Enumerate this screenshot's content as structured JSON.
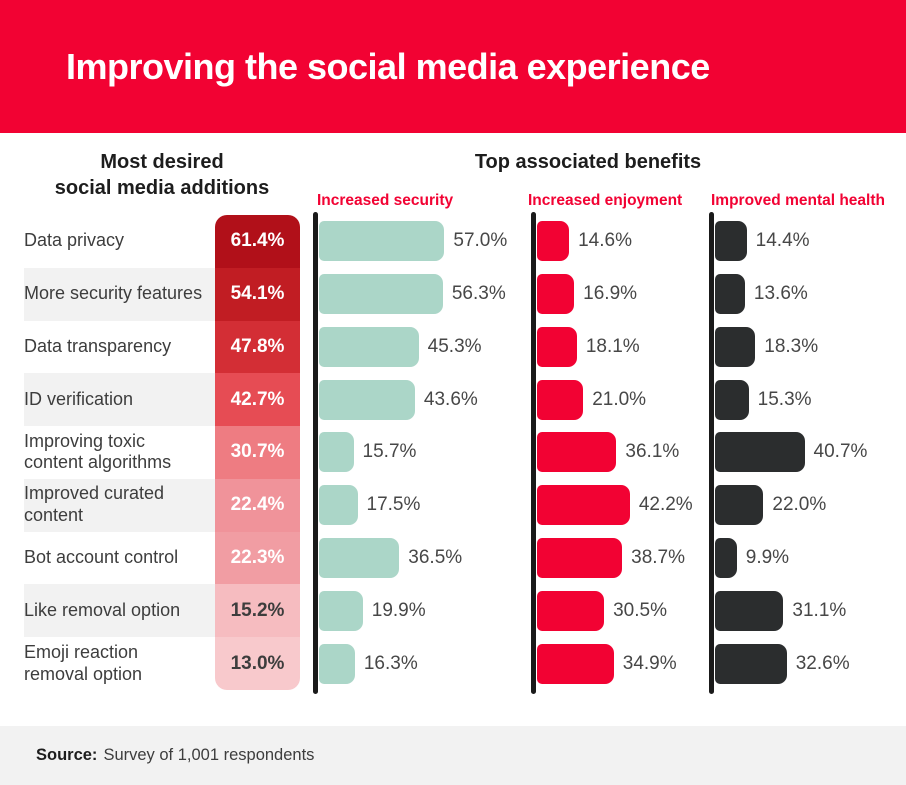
{
  "banner": {
    "title": "Improving the social media experience"
  },
  "headers": {
    "left_line1": "Most desired",
    "left_line2": "social media additions",
    "benefits": "Top associated benefits"
  },
  "footer": {
    "source_label": "Source:",
    "source_text": "Survey of 1,001 respondents"
  },
  "colors": {
    "banner_red": "#f20233",
    "bar_security": "#abd6c8",
    "bar_enjoyment": "#f20233",
    "bar_mental": "#2b2d2e",
    "axis": "#1a1a1a",
    "row_stripe": "#f2f2f2",
    "footer_bg": "#f2f2f2",
    "desire_cell_colors": [
      "#b11019",
      "#c11d23",
      "#d32e35",
      "#e64c54",
      "#ee7c82",
      "#f0939a",
      "#f19da3",
      "#f6bcc0",
      "#f8c9cc"
    ],
    "desire_cell_text_colors": [
      "#ffffff",
      "#ffffff",
      "#ffffff",
      "#ffffff",
      "#ffffff",
      "#ffffff",
      "#ffffff",
      "#3d3d3d",
      "#3d3d3d"
    ]
  },
  "chart_data": {
    "type": "bar",
    "orientation": "horizontal",
    "title": "Improving the social media experience",
    "categories": [
      "Data privacy",
      "More security features",
      "Data transparency",
      "ID verification",
      "Improving toxic content algorithms",
      "Improved curated content",
      "Bot account control",
      "Like removal option",
      "Emoji reaction removal option"
    ],
    "series": [
      {
        "name": "Most desired social media additions",
        "values": [
          61.4,
          54.1,
          47.8,
          42.7,
          30.7,
          22.4,
          22.3,
          15.2,
          13.0
        ]
      },
      {
        "name": "Increased security",
        "values": [
          57.0,
          56.3,
          45.3,
          43.6,
          15.7,
          17.5,
          36.5,
          19.9,
          16.3
        ]
      },
      {
        "name": "Increased enjoyment",
        "values": [
          14.6,
          16.9,
          18.1,
          21.0,
          36.1,
          42.2,
          38.7,
          30.5,
          34.9
        ]
      },
      {
        "name": "Improved mental health",
        "values": [
          14.4,
          13.6,
          18.3,
          15.3,
          40.7,
          22.0,
          9.9,
          31.1,
          32.6
        ]
      }
    ],
    "unit": "%",
    "value_format": "one_decimal_percent",
    "xlim": [
      0,
      100
    ],
    "grid": false,
    "legend_position": "column-headers"
  }
}
